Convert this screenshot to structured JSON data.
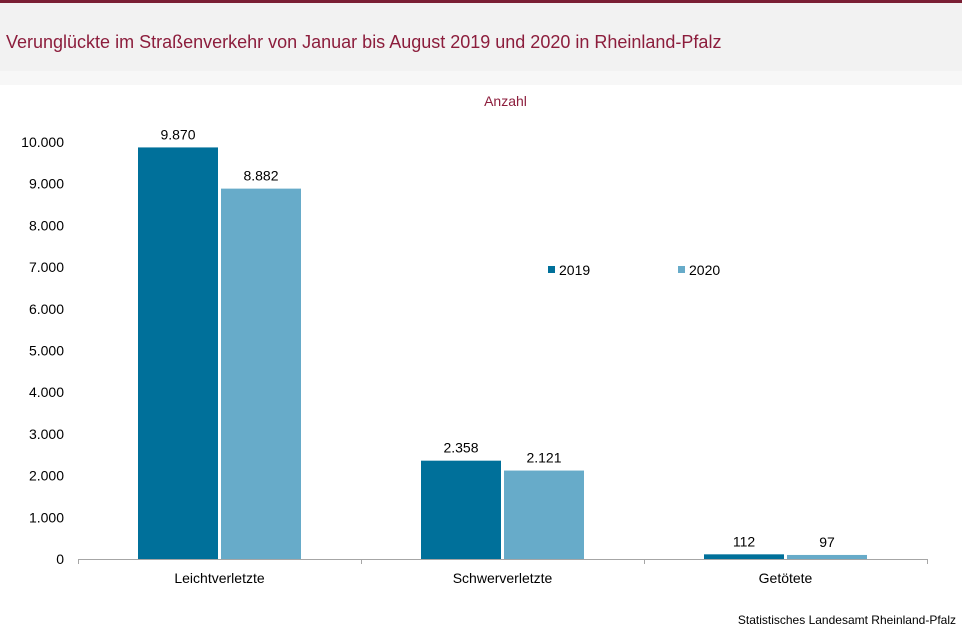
{
  "header": {
    "title": "Verunglückte im Straßenverkehr von Januar bis August 2019 und 2020 in Rheinland-Pfalz"
  },
  "footer": {
    "source": "Statistisches Landesamt  Rheinland-Pfalz"
  },
  "colors": {
    "title": "#8c1d3c",
    "series_2019": "#00709a",
    "series_2020": "#67abc9"
  },
  "chart_data": {
    "type": "bar",
    "title": "",
    "subtitle": "Anzahl",
    "xlabel": "",
    "ylabel": "",
    "categories": [
      "Leichtverletzte",
      "Schwerverletzte",
      "Getötete"
    ],
    "series": [
      {
        "name": "2019",
        "values": [
          9870,
          2358,
          112
        ],
        "labels": [
          "9.870",
          "2.358",
          "112"
        ]
      },
      {
        "name": "2020",
        "values": [
          8882,
          2121,
          97
        ],
        "labels": [
          "8.882",
          "2.121",
          "97"
        ]
      }
    ],
    "ylim": [
      0,
      10000
    ],
    "yticks": [
      {
        "value": 0,
        "label": "0"
      },
      {
        "value": 1000,
        "label": "1.000"
      },
      {
        "value": 2000,
        "label": "2.000"
      },
      {
        "value": 3000,
        "label": "3.000"
      },
      {
        "value": 4000,
        "label": "4.000"
      },
      {
        "value": 5000,
        "label": "5.000"
      },
      {
        "value": 6000,
        "label": "6.000"
      },
      {
        "value": 7000,
        "label": "7.000"
      },
      {
        "value": 8000,
        "label": "8.000"
      },
      {
        "value": 9000,
        "label": "9.000"
      },
      {
        "value": 10000,
        "label": "10.000"
      }
    ],
    "grid": false,
    "legend_position": "center-right"
  }
}
